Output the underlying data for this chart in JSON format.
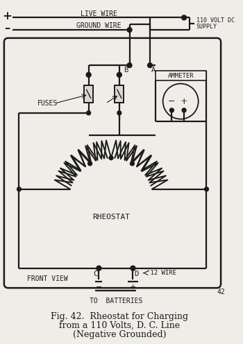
{
  "title_line1": "Fig. 42.  Rheostat for Charging",
  "title_line2": "from a 110 Volts, D. C. Line",
  "title_line3": "(Negative Grounded)",
  "page_num": "42",
  "bg_color": "#f0ede8",
  "line_color": "#1a1a1a",
  "figsize": [
    3.5,
    4.96
  ],
  "dpi": 100
}
